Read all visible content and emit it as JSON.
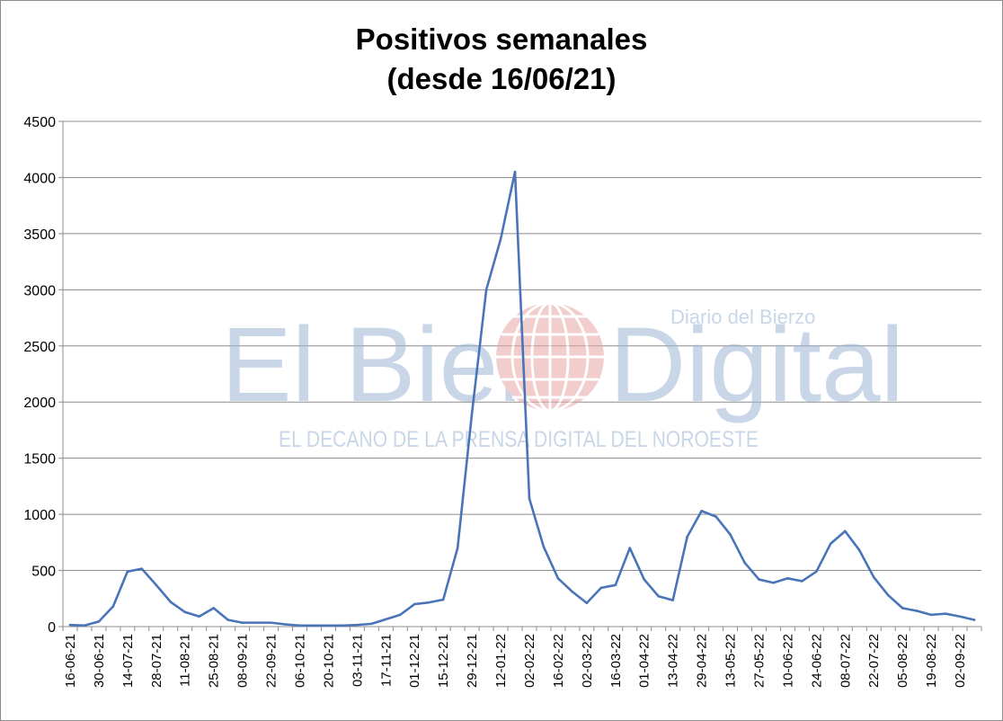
{
  "chart_data": {
    "type": "line",
    "title_line1": "Positivos semanales",
    "title_line2": "(desde 16/06/21)",
    "xlabel": "",
    "ylabel": "",
    "ylim": [
      0,
      4500
    ],
    "yticks": [
      0,
      500,
      1000,
      1500,
      2000,
      2500,
      3000,
      3500,
      4000,
      4500
    ],
    "grid": true,
    "legend": "none",
    "line_color": "#4a74b8",
    "x_tick_labels": [
      "16-06-21",
      "30-06-21",
      "14-07-21",
      "28-07-21",
      "11-08-21",
      "25-08-21",
      "08-09-21",
      "22-09-21",
      "06-10-21",
      "20-10-21",
      "03-11-21",
      "17-11-21",
      "01-12-21",
      "15-12-21",
      "29-12-21",
      "12-01-22",
      "02-02-22",
      "16-02-22",
      "02-03-22",
      "16-03-22",
      "01-04-22",
      "13-04-22",
      "29-04-22",
      "13-05-22",
      "27-05-22",
      "10-06-22",
      "24-06-22",
      "08-07-22",
      "22-07-22",
      "05-08-22",
      "19-08-22",
      "02-09-22"
    ],
    "series": [
      {
        "values": [
          15,
          10,
          45,
          180,
          490,
          515,
          370,
          220,
          130,
          90,
          165,
          60,
          35,
          35,
          35,
          20,
          10,
          10,
          10,
          10,
          15,
          25,
          65,
          105,
          200,
          215,
          240,
          700,
          1900,
          3000,
          3450,
          4050,
          1140,
          710,
          430,
          310,
          210,
          345,
          370,
          700,
          420,
          270,
          235,
          800,
          1030,
          980,
          820,
          570,
          420,
          390,
          430,
          405,
          490,
          740,
          850,
          680,
          440,
          280,
          165,
          140,
          105,
          115,
          90,
          60
        ],
        "x_tick_every": 2
      }
    ]
  },
  "watermark": {
    "brand": "El Bierzo Digital",
    "brand_left": "El Bierz",
    "brand_right": "Digital",
    "tagline": "Diario del Bierzo",
    "slogan": "EL DECANO DE LA PRENSA DIGITAL DEL NOROESTE"
  }
}
